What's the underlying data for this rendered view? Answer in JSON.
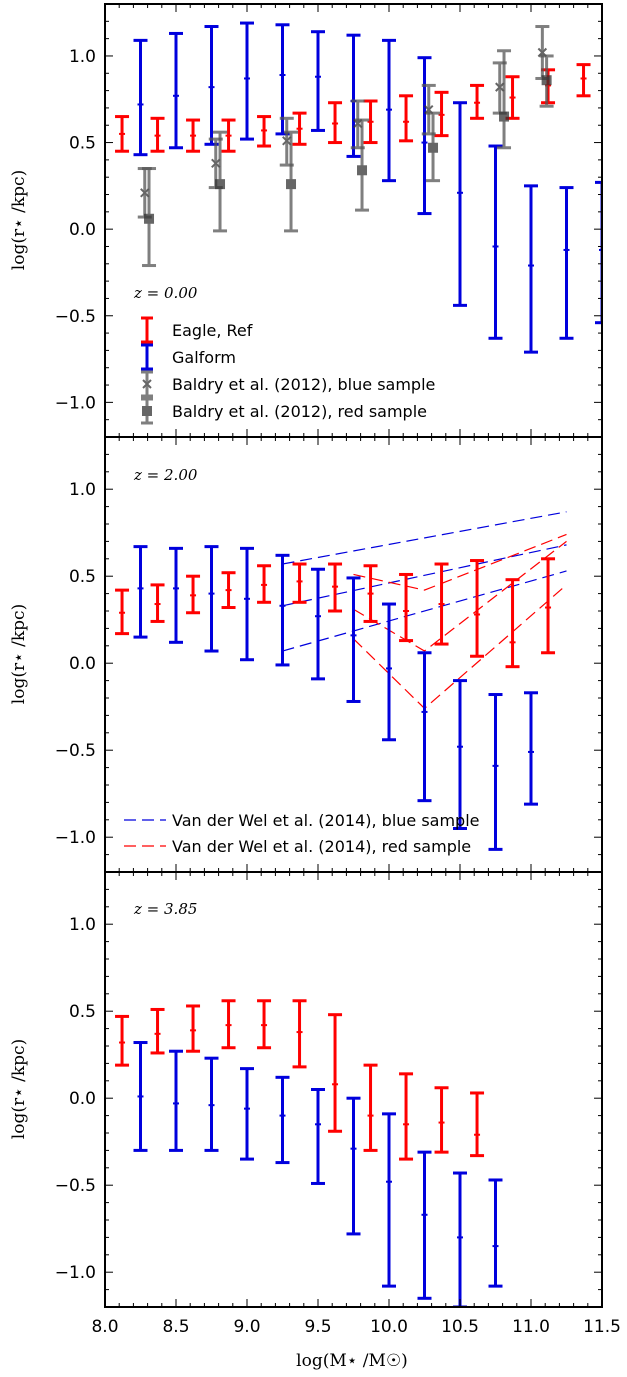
{
  "chart_data": {
    "type": "scatter",
    "xlabel": "log(M⋆ /M☉)",
    "ylabel": "log(r⋆ /kpc)",
    "xlim": [
      8.0,
      11.5
    ],
    "ylim": [
      -1.2,
      1.3
    ],
    "x_ticks": [
      "8.0",
      "8.5",
      "9.0",
      "9.5",
      "10.0",
      "10.5",
      "11.0",
      "11.5"
    ],
    "y_ticks": [
      "1.0",
      "0.5",
      "0.0",
      "−0.5",
      "−1.0"
    ],
    "colors": {
      "eagle": "#ff0000",
      "galform": "#0000dd",
      "baldry": "#555555"
    },
    "panels": [
      {
        "label": "z = 0.00",
        "legend": {
          "position": "lower-left",
          "entries": [
            "Eagle, Ref",
            "Galform",
            "Baldry et al. (2012), blue sample",
            "Baldry et al. (2012), red sample"
          ]
        },
        "series": [
          {
            "name": "Eagle, Ref",
            "style": "errorbar",
            "color": "#ff0000",
            "points": [
              {
                "x": 8.12,
                "y": 0.55,
                "lo": 0.45,
                "hi": 0.65
              },
              {
                "x": 8.37,
                "y": 0.54,
                "lo": 0.45,
                "hi": 0.64
              },
              {
                "x": 8.62,
                "y": 0.54,
                "lo": 0.45,
                "hi": 0.63
              },
              {
                "x": 8.87,
                "y": 0.54,
                "lo": 0.45,
                "hi": 0.63
              },
              {
                "x": 9.12,
                "y": 0.57,
                "lo": 0.48,
                "hi": 0.65
              },
              {
                "x": 9.37,
                "y": 0.58,
                "lo": 0.49,
                "hi": 0.67
              },
              {
                "x": 9.62,
                "y": 0.61,
                "lo": 0.5,
                "hi": 0.73
              },
              {
                "x": 9.87,
                "y": 0.62,
                "lo": 0.5,
                "hi": 0.74
              },
              {
                "x": 10.12,
                "y": 0.62,
                "lo": 0.51,
                "hi": 0.77
              },
              {
                "x": 10.37,
                "y": 0.66,
                "lo": 0.54,
                "hi": 0.79
              },
              {
                "x": 10.62,
                "y": 0.73,
                "lo": 0.64,
                "hi": 0.83
              },
              {
                "x": 10.87,
                "y": 0.76,
                "lo": 0.64,
                "hi": 0.88
              },
              {
                "x": 11.12,
                "y": 0.83,
                "lo": 0.73,
                "hi": 0.92
              },
              {
                "x": 11.37,
                "y": 0.87,
                "lo": 0.77,
                "hi": 0.95
              }
            ]
          },
          {
            "name": "Galform",
            "style": "errorbar",
            "color": "#0000dd",
            "points": [
              {
                "x": 8.25,
                "y": 0.72,
                "lo": 0.43,
                "hi": 1.09
              },
              {
                "x": 8.5,
                "y": 0.77,
                "lo": 0.47,
                "hi": 1.13
              },
              {
                "x": 8.75,
                "y": 0.82,
                "lo": 0.49,
                "hi": 1.17
              },
              {
                "x": 9.0,
                "y": 0.87,
                "lo": 0.52,
                "hi": 1.19
              },
              {
                "x": 9.25,
                "y": 0.89,
                "lo": 0.55,
                "hi": 1.18
              },
              {
                "x": 9.5,
                "y": 0.88,
                "lo": 0.57,
                "hi": 1.14
              },
              {
                "x": 9.75,
                "y": 0.74,
                "lo": 0.42,
                "hi": 1.12
              },
              {
                "x": 10.0,
                "y": 0.69,
                "lo": 0.28,
                "hi": 1.09
              },
              {
                "x": 10.25,
                "y": 0.5,
                "lo": 0.09,
                "hi": 0.99
              },
              {
                "x": 10.5,
                "y": 0.21,
                "lo": -0.44,
                "hi": 0.73
              },
              {
                "x": 10.75,
                "y": -0.1,
                "lo": -0.63,
                "hi": 0.48
              },
              {
                "x": 11.0,
                "y": -0.21,
                "lo": -0.71,
                "hi": 0.25
              },
              {
                "x": 11.25,
                "y": -0.12,
                "lo": -0.63,
                "hi": 0.24
              },
              {
                "x": 11.5,
                "y": -0.12,
                "lo": -0.54,
                "hi": 0.27
              }
            ]
          },
          {
            "name": "Baldry et al. (2012), blue sample",
            "style": "errorbar-x",
            "color": "#555555",
            "points": [
              {
                "x": 8.28,
                "y": 0.21,
                "lo": 0.07,
                "hi": 0.35
              },
              {
                "x": 8.78,
                "y": 0.38,
                "lo": 0.24,
                "hi": 0.52
              },
              {
                "x": 9.28,
                "y": 0.51,
                "lo": 0.37,
                "hi": 0.64
              },
              {
                "x": 9.78,
                "y": 0.61,
                "lo": 0.47,
                "hi": 0.74
              },
              {
                "x": 10.28,
                "y": 0.69,
                "lo": 0.55,
                "hi": 0.83
              },
              {
                "x": 10.78,
                "y": 0.82,
                "lo": 0.67,
                "hi": 0.96
              },
              {
                "x": 11.08,
                "y": 1.02,
                "lo": 0.87,
                "hi": 1.17
              }
            ]
          },
          {
            "name": "Baldry et al. (2012), red sample",
            "style": "errorbar-square",
            "color": "#555555",
            "points": [
              {
                "x": 8.31,
                "y": 0.06,
                "lo": -0.21,
                "hi": 0.35
              },
              {
                "x": 8.81,
                "y": 0.26,
                "lo": -0.01,
                "hi": 0.56
              },
              {
                "x": 9.31,
                "y": 0.26,
                "lo": -0.01,
                "hi": 0.56
              },
              {
                "x": 9.81,
                "y": 0.34,
                "lo": 0.11,
                "hi": 0.63
              },
              {
                "x": 10.31,
                "y": 0.47,
                "lo": 0.28,
                "hi": 0.67
              },
              {
                "x": 10.81,
                "y": 0.65,
                "lo": 0.47,
                "hi": 1.03
              },
              {
                "x": 11.11,
                "y": 0.86,
                "lo": 0.71,
                "hi": 1.0
              }
            ]
          }
        ]
      },
      {
        "label": "z = 2.00",
        "legend": {
          "position": "lower-left",
          "entries": [
            "Van der Wel et al. (2014), blue sample",
            "Van der Wel et al. (2014), red sample"
          ]
        },
        "series": [
          {
            "name": "Eagle, Ref",
            "style": "errorbar",
            "color": "#ff0000",
            "points": [
              {
                "x": 8.12,
                "y": 0.29,
                "lo": 0.17,
                "hi": 0.42
              },
              {
                "x": 8.37,
                "y": 0.34,
                "lo": 0.24,
                "hi": 0.45
              },
              {
                "x": 8.62,
                "y": 0.39,
                "lo": 0.29,
                "hi": 0.5
              },
              {
                "x": 8.87,
                "y": 0.42,
                "lo": 0.32,
                "hi": 0.52
              },
              {
                "x": 9.12,
                "y": 0.45,
                "lo": 0.35,
                "hi": 0.56
              },
              {
                "x": 9.37,
                "y": 0.47,
                "lo": 0.35,
                "hi": 0.57
              },
              {
                "x": 9.62,
                "y": 0.44,
                "lo": 0.3,
                "hi": 0.57
              },
              {
                "x": 9.87,
                "y": 0.4,
                "lo": 0.24,
                "hi": 0.56
              },
              {
                "x": 10.12,
                "y": 0.3,
                "lo": 0.13,
                "hi": 0.51
              },
              {
                "x": 10.37,
                "y": 0.34,
                "lo": 0.11,
                "hi": 0.57
              },
              {
                "x": 10.62,
                "y": 0.28,
                "lo": 0.04,
                "hi": 0.59
              },
              {
                "x": 10.87,
                "y": 0.12,
                "lo": -0.02,
                "hi": 0.48
              },
              {
                "x": 11.12,
                "y": 0.32,
                "lo": 0.06,
                "hi": 0.6
              }
            ]
          },
          {
            "name": "Galform",
            "style": "errorbar",
            "color": "#0000dd",
            "points": [
              {
                "x": 8.25,
                "y": 0.43,
                "lo": 0.15,
                "hi": 0.67
              },
              {
                "x": 8.5,
                "y": 0.43,
                "lo": 0.12,
                "hi": 0.66
              },
              {
                "x": 8.75,
                "y": 0.4,
                "lo": 0.07,
                "hi": 0.67
              },
              {
                "x": 9.0,
                "y": 0.37,
                "lo": 0.02,
                "hi": 0.66
              },
              {
                "x": 9.25,
                "y": 0.33,
                "lo": -0.01,
                "hi": 0.62
              },
              {
                "x": 9.5,
                "y": 0.27,
                "lo": -0.09,
                "hi": 0.54
              },
              {
                "x": 9.75,
                "y": 0.16,
                "lo": -0.22,
                "hi": 0.49
              },
              {
                "x": 10.0,
                "y": -0.03,
                "lo": -0.44,
                "hi": 0.34
              },
              {
                "x": 10.25,
                "y": -0.28,
                "lo": -0.79,
                "hi": 0.06
              },
              {
                "x": 10.5,
                "y": -0.48,
                "lo": -0.95,
                "hi": -0.1
              },
              {
                "x": 10.75,
                "y": -0.59,
                "lo": -1.07,
                "hi": -0.18
              },
              {
                "x": 11.0,
                "y": -0.51,
                "lo": -0.81,
                "hi": -0.17
              }
            ]
          },
          {
            "name": "Van der Wel et al. (2014), blue sample",
            "style": "dashed",
            "color": "#0000dd",
            "lines": [
              [
                [
                  9.25,
                  0.57
                ],
                [
                  11.25,
                  0.87
                ]
              ],
              [
                [
                  9.25,
                  0.33
                ],
                [
                  11.25,
                  0.68
                ]
              ],
              [
                [
                  9.25,
                  0.07
                ],
                [
                  11.25,
                  0.53
                ]
              ]
            ]
          },
          {
            "name": "Van der Wel et al. (2014), red sample",
            "style": "dashed",
            "color": "#ff0000",
            "lines": [
              [
                [
                  9.75,
                  0.51
                ],
                [
                  10.25,
                  0.42
                ],
                [
                  11.25,
                  0.74
                ]
              ],
              [
                [
                  9.75,
                  0.31
                ],
                [
                  10.25,
                  0.07
                ],
                [
                  11.25,
                  0.7
                ]
              ],
              [
                [
                  9.75,
                  0.14
                ],
                [
                  10.25,
                  -0.26
                ],
                [
                  11.25,
                  0.45
                ]
              ]
            ]
          }
        ]
      },
      {
        "label": "z = 3.85",
        "series": [
          {
            "name": "Eagle, Ref",
            "style": "errorbar",
            "color": "#ff0000",
            "points": [
              {
                "x": 8.12,
                "y": 0.32,
                "lo": 0.19,
                "hi": 0.47
              },
              {
                "x": 8.37,
                "y": 0.37,
                "lo": 0.26,
                "hi": 0.51
              },
              {
                "x": 8.62,
                "y": 0.39,
                "lo": 0.27,
                "hi": 0.53
              },
              {
                "x": 8.87,
                "y": 0.42,
                "lo": 0.29,
                "hi": 0.56
              },
              {
                "x": 9.12,
                "y": 0.42,
                "lo": 0.29,
                "hi": 0.56
              },
              {
                "x": 9.37,
                "y": 0.38,
                "lo": 0.18,
                "hi": 0.56
              },
              {
                "x": 9.62,
                "y": 0.08,
                "lo": -0.19,
                "hi": 0.48
              },
              {
                "x": 9.87,
                "y": -0.1,
                "lo": -0.3,
                "hi": 0.19
              },
              {
                "x": 10.12,
                "y": -0.15,
                "lo": -0.35,
                "hi": 0.14
              },
              {
                "x": 10.37,
                "y": -0.14,
                "lo": -0.31,
                "hi": 0.06
              },
              {
                "x": 10.62,
                "y": -0.21,
                "lo": -0.33,
                "hi": 0.03
              }
            ]
          },
          {
            "name": "Galform",
            "style": "errorbar",
            "color": "#0000dd",
            "points": [
              {
                "x": 8.25,
                "y": 0.01,
                "lo": -0.3,
                "hi": 0.32
              },
              {
                "x": 8.5,
                "y": -0.03,
                "lo": -0.3,
                "hi": 0.27
              },
              {
                "x": 8.75,
                "y": -0.04,
                "lo": -0.3,
                "hi": 0.23
              },
              {
                "x": 9.0,
                "y": -0.06,
                "lo": -0.35,
                "hi": 0.17
              },
              {
                "x": 9.25,
                "y": -0.1,
                "lo": -0.37,
                "hi": 0.12
              },
              {
                "x": 9.5,
                "y": -0.15,
                "lo": -0.49,
                "hi": 0.05
              },
              {
                "x": 9.75,
                "y": -0.29,
                "lo": -0.78,
                "hi": 0.0
              },
              {
                "x": 10.0,
                "y": -0.48,
                "lo": -1.08,
                "hi": -0.09
              },
              {
                "x": 10.25,
                "y": -0.67,
                "lo": -1.15,
                "hi": -0.31
              },
              {
                "x": 10.5,
                "y": -0.8,
                "lo": -1.2,
                "hi": -0.43
              },
              {
                "x": 10.75,
                "y": -0.85,
                "lo": -1.08,
                "hi": -0.47
              }
            ]
          }
        ]
      }
    ]
  }
}
